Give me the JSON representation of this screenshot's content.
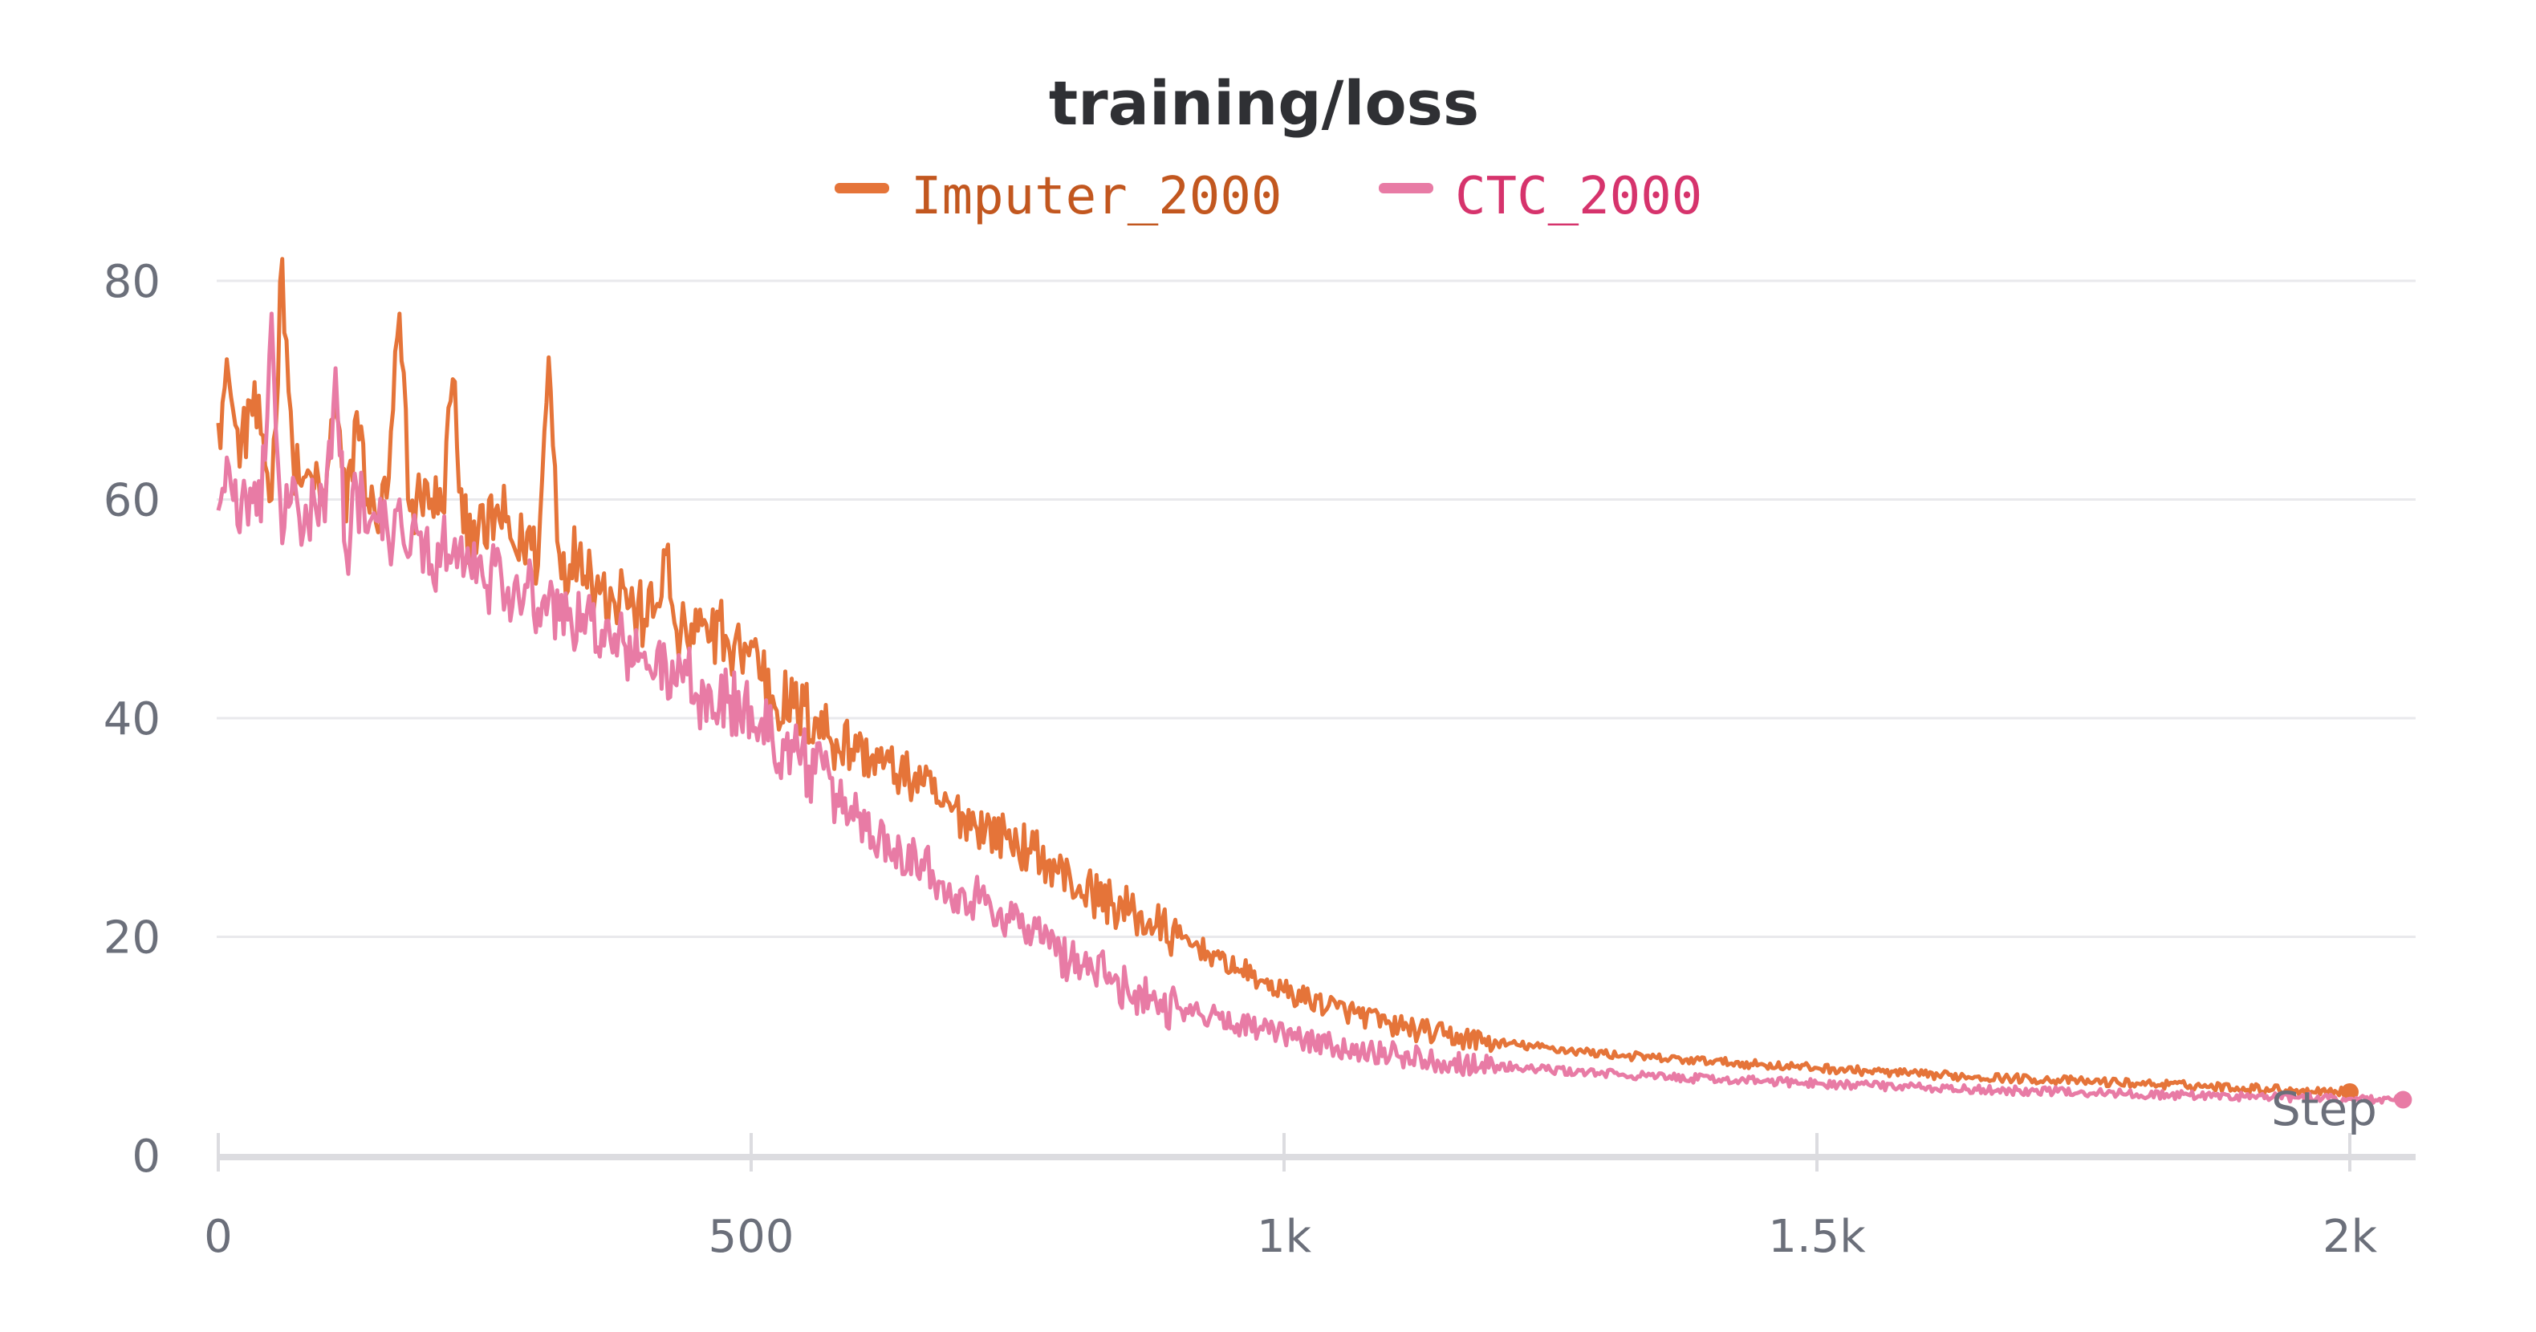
{
  "chart_data": {
    "type": "line",
    "title": "training/loss",
    "xlabel": "Step",
    "ylabel": "",
    "xlim": [
      0,
      2050
    ],
    "ylim": [
      0,
      85
    ],
    "grid": true,
    "legend_position": "top-center",
    "x_ticks": [
      {
        "value": 0,
        "label": "0"
      },
      {
        "value": 500,
        "label": "500"
      },
      {
        "value": 1000,
        "label": "1k"
      },
      {
        "value": 1500,
        "label": "1.5k"
      },
      {
        "value": 2000,
        "label": "2k"
      }
    ],
    "y_ticks": [
      {
        "value": 0,
        "label": "0"
      },
      {
        "value": 20,
        "label": "20"
      },
      {
        "value": 40,
        "label": "40"
      },
      {
        "value": 60,
        "label": "60"
      },
      {
        "value": 80,
        "label": "80"
      }
    ],
    "series": [
      {
        "name": "Imputer_2000",
        "color": "#e57439",
        "end_marker": true,
        "x": [
          0,
          10,
          20,
          30,
          40,
          50,
          60,
          70,
          80,
          90,
          100,
          110,
          120,
          130,
          140,
          150,
          160,
          170,
          180,
          190,
          200,
          210,
          220,
          230,
          240,
          250,
          260,
          270,
          280,
          290,
          300,
          310,
          320,
          330,
          340,
          350,
          360,
          370,
          380,
          390,
          400,
          410,
          420,
          430,
          440,
          450,
          460,
          470,
          480,
          490,
          500,
          520,
          540,
          560,
          580,
          600,
          620,
          640,
          660,
          680,
          700,
          720,
          740,
          760,
          780,
          800,
          820,
          840,
          860,
          880,
          900,
          920,
          940,
          960,
          980,
          1000,
          1050,
          1100,
          1150,
          1200,
          1250,
          1300,
          1350,
          1400,
          1450,
          1500,
          1550,
          1600,
          1650,
          1700,
          1750,
          1800,
          1850,
          1900,
          1950,
          2000
        ],
        "y": [
          67,
          71,
          63,
          69,
          66,
          60,
          82,
          64,
          62,
          61,
          59,
          70,
          58,
          68,
          60,
          57,
          62,
          77,
          59,
          60,
          60,
          59,
          71,
          57,
          58,
          56,
          59,
          58,
          55,
          57,
          54,
          73,
          55,
          54,
          56,
          53,
          52,
          51,
          52,
          50,
          49,
          50,
          55,
          48,
          47,
          48,
          47,
          49,
          46,
          46,
          47,
          42,
          41,
          40,
          38,
          37,
          36,
          35,
          34,
          32,
          31,
          30,
          29,
          28,
          27,
          25,
          24,
          23,
          22,
          21,
          20,
          19,
          18,
          17,
          16,
          15,
          13.5,
          12,
          11,
          10.3,
          9.8,
          9.3,
          8.9,
          8.6,
          8.3,
          8,
          7.7,
          7.4,
          7.2,
          7,
          6.8,
          6.6,
          6.4,
          6.2,
          6,
          5.8
        ]
      },
      {
        "name": "CTC_2000",
        "color": "#e87ba5",
        "end_marker": true,
        "x": [
          0,
          10,
          20,
          30,
          40,
          50,
          60,
          70,
          80,
          90,
          100,
          110,
          120,
          130,
          140,
          150,
          160,
          170,
          180,
          190,
          200,
          210,
          220,
          230,
          240,
          250,
          260,
          270,
          280,
          290,
          300,
          310,
          320,
          330,
          340,
          350,
          360,
          370,
          380,
          390,
          400,
          410,
          420,
          430,
          440,
          450,
          460,
          470,
          480,
          490,
          500,
          520,
          540,
          560,
          580,
          600,
          620,
          640,
          660,
          680,
          700,
          720,
          740,
          760,
          780,
          800,
          820,
          840,
          860,
          880,
          900,
          920,
          940,
          960,
          980,
          1000,
          1050,
          1100,
          1150,
          1200,
          1250,
          1300,
          1350,
          1400,
          1450,
          1500,
          1550,
          1600,
          1650,
          1700,
          1750,
          1800,
          1850,
          1900,
          1950,
          2000,
          2050
        ],
        "y": [
          59,
          63,
          57,
          61,
          58,
          77,
          56,
          62,
          57,
          60,
          58,
          72,
          55,
          61,
          57,
          58,
          56,
          60,
          55,
          57,
          54,
          56,
          55,
          53,
          56,
          52,
          54,
          51,
          53,
          52,
          50,
          51,
          49,
          50,
          48,
          49,
          48,
          46,
          47,
          45,
          46,
          44,
          45,
          43,
          44,
          42,
          43,
          41,
          42,
          40,
          41,
          38,
          37,
          35,
          33,
          31,
          29,
          28,
          27,
          25,
          24,
          23,
          22,
          21,
          19,
          18,
          17,
          16,
          15,
          14,
          13.5,
          13,
          12.5,
          12,
          11.5,
          11,
          10,
          9.3,
          8.6,
          8.2,
          7.8,
          7.5,
          7.2,
          7,
          6.8,
          6.6,
          6.4,
          6.2,
          6,
          5.9,
          5.8,
          5.6,
          5.5,
          5.4,
          5.3,
          5.2,
          5.1
        ]
      }
    ]
  }
}
